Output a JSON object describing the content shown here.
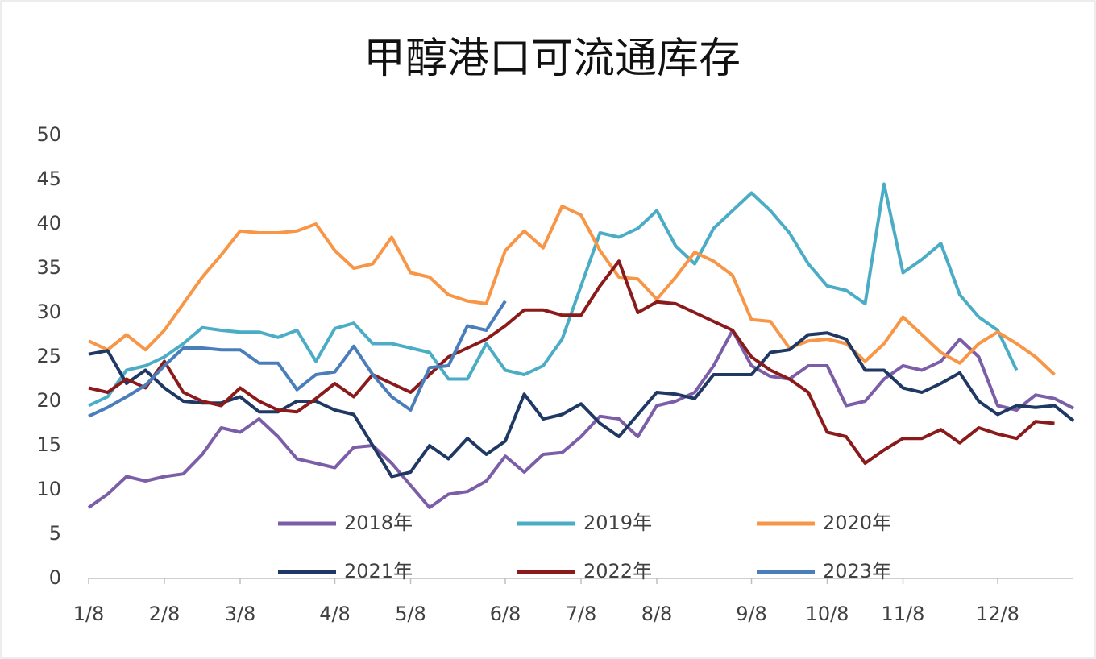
{
  "chart_data": {
    "type": "line",
    "title": "甲醇港口可流通库存",
    "categories": [
      "1/8",
      null,
      null,
      null,
      "2/8",
      null,
      null,
      null,
      "3/8",
      null,
      null,
      null,
      null,
      "4/8",
      null,
      null,
      null,
      "5/8",
      null,
      null,
      null,
      null,
      "6/8",
      null,
      null,
      null,
      "7/8",
      null,
      null,
      null,
      "8/8",
      null,
      null,
      null,
      null,
      "9/8",
      null,
      null,
      null,
      "10/8",
      null,
      null,
      null,
      "11/8",
      null,
      null,
      null,
      null,
      "12/8",
      null,
      null,
      null,
      null
    ],
    "ylim": [
      0,
      50
    ],
    "yticks": [
      0,
      5,
      10,
      15,
      20,
      25,
      30,
      35,
      40,
      45,
      50
    ],
    "series": [
      {
        "name": "2018年",
        "color": "#7b5ea7",
        "values": [
          8,
          9.5,
          11.5,
          11,
          11.5,
          11.8,
          14,
          17,
          16.5,
          18,
          16,
          13.5,
          13,
          12.5,
          14.8,
          15,
          13,
          10.5,
          8,
          9.5,
          9.8,
          11,
          13.8,
          12,
          14,
          14.2,
          16,
          18.3,
          18,
          16,
          19.5,
          20,
          21,
          24,
          28,
          24,
          22.8,
          22.5,
          24,
          24,
          19.5,
          20,
          22.5,
          24,
          23.5,
          24.5,
          27,
          25,
          19.5,
          19,
          20.7,
          20.3,
          19.2
        ]
      },
      {
        "name": "2019年",
        "color": "#4bacc6",
        "values": [
          19.5,
          20.5,
          23.5,
          24,
          25,
          26.5,
          28.3,
          28,
          27.8,
          27.8,
          27.2,
          28,
          24.5,
          28.2,
          28.8,
          26.5,
          26.5,
          26,
          25.5,
          22.5,
          22.5,
          26.5,
          23.5,
          23,
          24,
          27,
          33,
          39,
          38.5,
          39.5,
          41.5,
          37.5,
          35.5,
          39.5,
          41.5,
          43.5,
          41.5,
          39,
          35.5,
          33,
          32.5,
          31,
          44.5,
          34.5,
          36,
          37.8,
          32,
          29.5,
          28,
          23.5,
          null,
          null,
          null
        ]
      },
      {
        "name": "2020年",
        "color": "#f79646",
        "values": [
          26.8,
          25.8,
          27.5,
          25.8,
          28,
          31,
          34,
          36.5,
          39.2,
          39,
          39,
          39.2,
          40,
          37,
          35,
          35.5,
          38.5,
          34.5,
          34,
          32,
          31.3,
          31,
          37,
          39.2,
          37.3,
          42,
          41,
          37,
          34,
          33.8,
          31.5,
          34,
          36.8,
          35.8,
          34.2,
          29.2,
          29,
          26,
          26.8,
          27,
          26.5,
          24.5,
          26.5,
          29.5,
          27.5,
          25.5,
          24.3,
          26.5,
          27.8,
          26.5,
          25,
          23,
          null
        ]
      },
      {
        "name": "2021年",
        "color": "#1f3864",
        "values": [
          25.3,
          25.7,
          22,
          23.5,
          21.5,
          20,
          19.8,
          19.8,
          20.5,
          18.8,
          18.8,
          20,
          20,
          19,
          18.5,
          15,
          11.5,
          12,
          15,
          13.5,
          15.8,
          14,
          15.5,
          20.8,
          18,
          18.5,
          19.7,
          17.5,
          16,
          18.5,
          21,
          20.8,
          20.3,
          23,
          23,
          23,
          25.5,
          25.8,
          27.5,
          27.7,
          27,
          23.5,
          23.5,
          21.5,
          21,
          22,
          23.2,
          20,
          18.5,
          19.5,
          19.3,
          19.5,
          17.8
        ]
      },
      {
        "name": "2022年",
        "color": "#8b1a1a",
        "values": [
          21.5,
          21,
          22.5,
          21.5,
          24.5,
          21,
          20,
          19.5,
          21.5,
          20,
          19,
          18.8,
          20.3,
          22,
          20.5,
          23,
          22,
          21,
          23,
          25,
          26,
          27,
          28.5,
          30.3,
          30.3,
          29.7,
          29.7,
          33,
          35.8,
          30,
          31.2,
          31,
          30,
          29,
          28,
          25,
          23.5,
          22.5,
          21,
          16.5,
          16,
          13,
          14.5,
          15.8,
          15.8,
          16.8,
          15.3,
          17,
          16.3,
          15.8,
          17.7,
          17.5,
          null
        ]
      },
      {
        "name": "2023年",
        "color": "#4a7ebb",
        "values": [
          18.3,
          19.3,
          20.5,
          21.8,
          24,
          26,
          26,
          25.8,
          25.8,
          24.3,
          24.3,
          21.3,
          23,
          23.3,
          26.2,
          23,
          20.5,
          19,
          23.8,
          24,
          28.5,
          28,
          31.3,
          null,
          null,
          null,
          null,
          null,
          null,
          null,
          null,
          null,
          null,
          null,
          null,
          null,
          null,
          null,
          null,
          null,
          null,
          null,
          null,
          null,
          null,
          null,
          null,
          null,
          null,
          null,
          null,
          null,
          null
        ]
      }
    ]
  }
}
